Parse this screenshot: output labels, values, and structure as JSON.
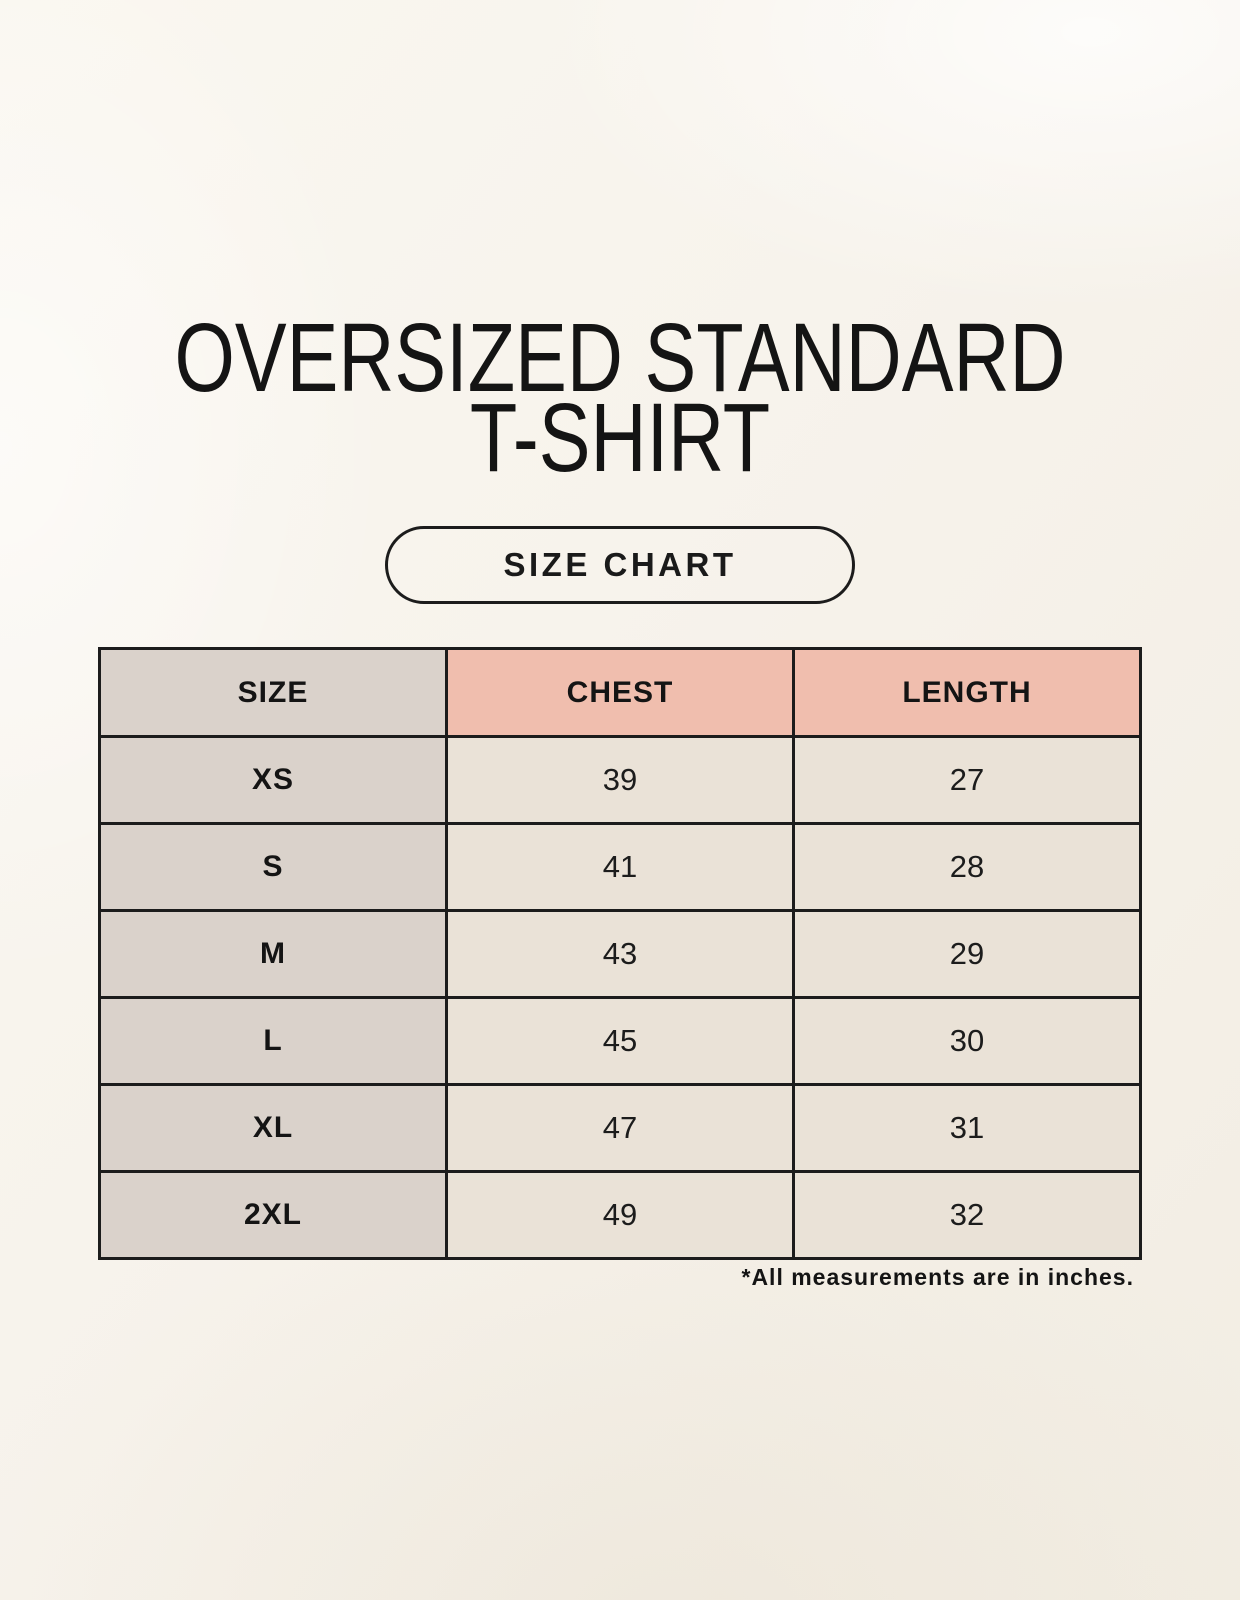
{
  "title": {
    "lines": [
      "OVERSIZED STANDARD",
      "T-SHIRT"
    ]
  },
  "button": {
    "label": "SIZE CHART"
  },
  "chart_data": {
    "type": "table",
    "title": "OVERSIZED STANDARD T-SHIRT",
    "columns": [
      "SIZE",
      "CHEST",
      "LENGTH"
    ],
    "rows": [
      [
        "XS",
        39,
        27
      ],
      [
        "S",
        41,
        28
      ],
      [
        "M",
        43,
        29
      ],
      [
        "L",
        45,
        30
      ],
      [
        "XL",
        47,
        31
      ],
      [
        "2XL",
        49,
        32
      ]
    ],
    "note": "*All measurements are in inches.",
    "units": "inches"
  },
  "colors": {
    "background": "#f7f3ec",
    "table_label_bg": "#dad2cb",
    "table_accent_bg": "#f0beae",
    "table_cell_bg": "#eae2d7",
    "table_border": "#1c1c1c",
    "text": "#141414"
  }
}
